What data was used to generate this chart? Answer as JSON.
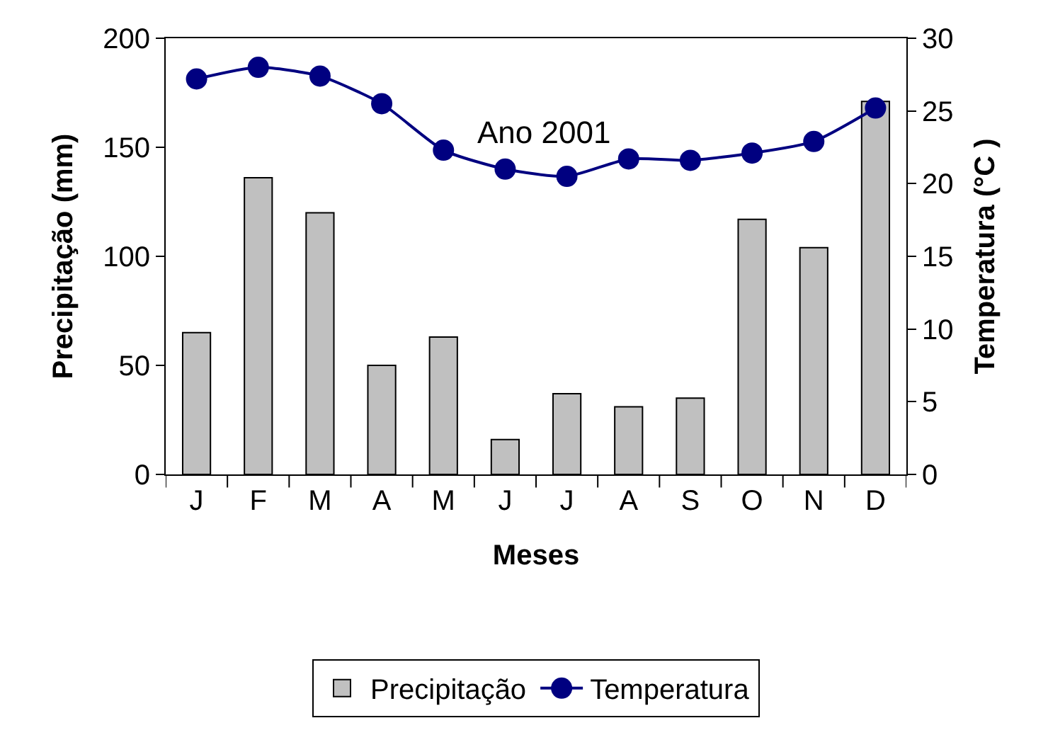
{
  "chart_data": {
    "type": "bar",
    "categories": [
      "J",
      "F",
      "M",
      "A",
      "M",
      "J",
      "J",
      "A",
      "S",
      "O",
      "N",
      "D"
    ],
    "xlabel": "Meses",
    "ylabel": "Precipitação (mm)",
    "y2label": "Temperatura (°C )",
    "series": [
      {
        "name": "Precipitação",
        "color": "#c0c0c0",
        "values": [
          65,
          136,
          120,
          50,
          63,
          16,
          37,
          31,
          35,
          117,
          104,
          171
        ]
      },
      {
        "name": "Temperatura",
        "type": "line",
        "axis": "y2",
        "color": "#000080",
        "marker": "circle",
        "line_style": "solid",
        "values": [
          27.2,
          28.0,
          27.4,
          25.5,
          22.3,
          21.0,
          20.5,
          21.7,
          21.6,
          22.1,
          22.9,
          25.2
        ]
      }
    ],
    "ylim": [
      0,
      200
    ],
    "yticks": [
      0,
      50,
      100,
      150,
      200
    ],
    "y2lim": [
      0,
      30
    ],
    "y2ticks": [
      0,
      5,
      10,
      15,
      20,
      25,
      30
    ],
    "annotations": [
      "Ano 2001"
    ],
    "legend": "bottom"
  }
}
